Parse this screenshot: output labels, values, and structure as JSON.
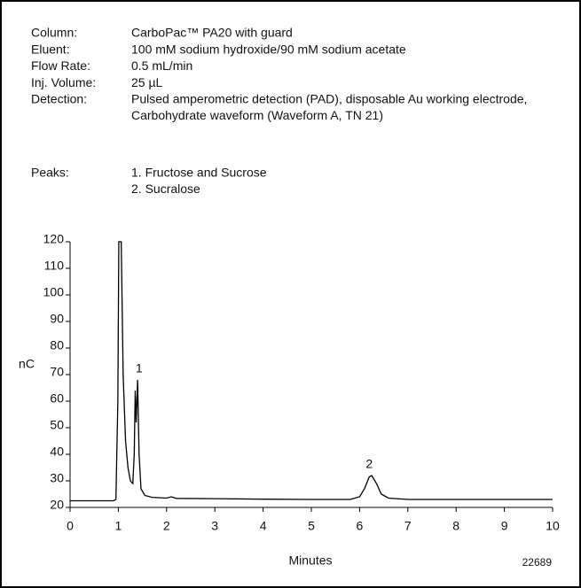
{
  "info": [
    {
      "label": "Column:",
      "value": [
        "CarboPac™ PA20 with guard"
      ]
    },
    {
      "label": "Eluent:",
      "value": [
        "100 mM sodium hydroxide/90 mM sodium acetate"
      ]
    },
    {
      "label": "Flow Rate:",
      "value": [
        "0.5 mL/min"
      ]
    },
    {
      "label": "Inj. Volume:",
      "value": [
        "25 µL"
      ]
    },
    {
      "label": "Detection:",
      "value": [
        "Pulsed amperometric detection (PAD), disposable Au working electrode,",
        "Carbohydrate waveform (Waveform A, TN 21)"
      ]
    }
  ],
  "peaks": {
    "label": "Peaks:",
    "items": [
      "1. Fructose and Sucrose",
      "2. Sucralose"
    ]
  },
  "figure_id": "22689",
  "chart_data": {
    "type": "line",
    "xlabel": "Minutes",
    "ylabel": "nC",
    "color": "#000000",
    "x": [
      0,
      0.9,
      0.95,
      0.99,
      1.01,
      1.06,
      1.1,
      1.15,
      1.2,
      1.25,
      1.3,
      1.33,
      1.35,
      1.37,
      1.4,
      1.43,
      1.47,
      1.55,
      1.7,
      2.0,
      2.1,
      2.2,
      3,
      4,
      5,
      5.8,
      6.0,
      6.1,
      6.2,
      6.25,
      6.35,
      6.45,
      6.6,
      7,
      10
    ],
    "values": [
      22.5,
      22.5,
      23,
      60,
      120,
      120,
      70,
      45,
      35,
      30,
      29,
      40,
      64,
      52,
      68,
      40,
      27,
      24.5,
      23.8,
      23.5,
      24,
      23.4,
      23.3,
      23.1,
      23,
      23,
      24,
      27,
      31.5,
      32,
      29,
      25,
      23.5,
      23,
      23
    ],
    "annotations": [
      {
        "text": "1",
        "x": 1.43,
        "y": 72
      },
      {
        "text": "2",
        "x": 6.2,
        "y": 36
      }
    ],
    "xlim": [
      0,
      10
    ],
    "xticks": [
      0,
      1,
      2,
      3,
      4,
      5,
      6,
      7,
      8,
      9,
      10
    ],
    "ylim": [
      20,
      120
    ],
    "yticks": [
      20,
      30,
      40,
      50,
      60,
      70,
      80,
      90,
      100,
      110,
      120
    ]
  }
}
